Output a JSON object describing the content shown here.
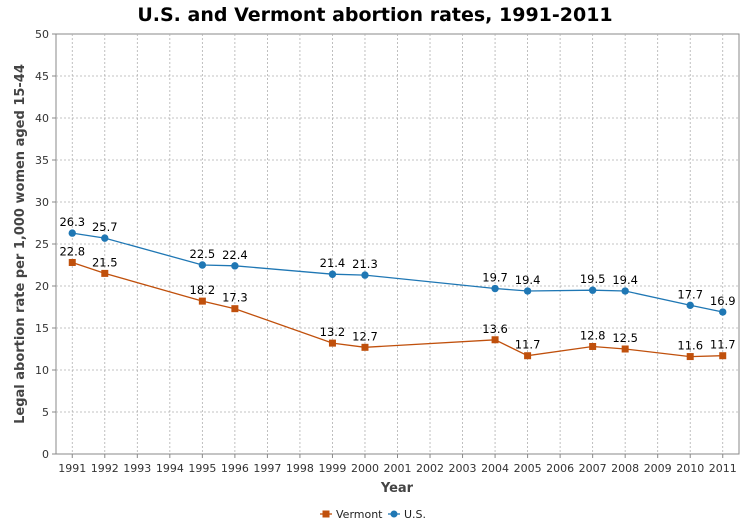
{
  "chart_data": {
    "type": "line",
    "title": "U.S. and Vermont abortion rates, 1991-2011",
    "xlabel": "Year",
    "ylabel": "Legal abortion rate per 1,000 women aged 15-44",
    "x_ticks": [
      1991,
      1992,
      1993,
      1994,
      1995,
      1996,
      1997,
      1998,
      1999,
      2000,
      2001,
      2002,
      2003,
      2004,
      2005,
      2006,
      2007,
      2008,
      2009,
      2010,
      2011
    ],
    "y_ticks": [
      0,
      5,
      10,
      15,
      20,
      25,
      30,
      35,
      40,
      45,
      50
    ],
    "xlim": [
      1990.5,
      2011.5
    ],
    "ylim": [
      0,
      50
    ],
    "grid": true,
    "legend_position": "bottom-center",
    "series": [
      {
        "name": "Vermont",
        "color": "#c0500c",
        "marker": "square",
        "x": [
          1991,
          1992,
          1995,
          1996,
          1999,
          2000,
          2004,
          2005,
          2007,
          2008,
          2010,
          2011
        ],
        "values": [
          22.8,
          21.5,
          18.2,
          17.3,
          13.2,
          12.7,
          13.6,
          11.7,
          12.8,
          12.5,
          11.6,
          11.7
        ],
        "labels": [
          "22.8",
          "21.5",
          "18.2",
          "17.3",
          "13.2",
          "12.7",
          "13.6",
          "11.7",
          "12.8",
          "12.5",
          "11.6",
          "11.7"
        ]
      },
      {
        "name": "U.S.",
        "color": "#1f77b4",
        "marker": "circle",
        "x": [
          1991,
          1992,
          1995,
          1996,
          1999,
          2000,
          2004,
          2005,
          2007,
          2008,
          2010,
          2011
        ],
        "values": [
          26.3,
          25.7,
          22.5,
          22.4,
          21.4,
          21.3,
          19.7,
          19.4,
          19.5,
          19.4,
          17.7,
          16.9
        ],
        "labels": [
          "26.3",
          "25.7",
          "22.5",
          "22.4",
          "21.4",
          "21.3",
          "19.7",
          "19.4",
          "19.5",
          "19.4",
          "17.7",
          "16.9"
        ]
      }
    ]
  }
}
